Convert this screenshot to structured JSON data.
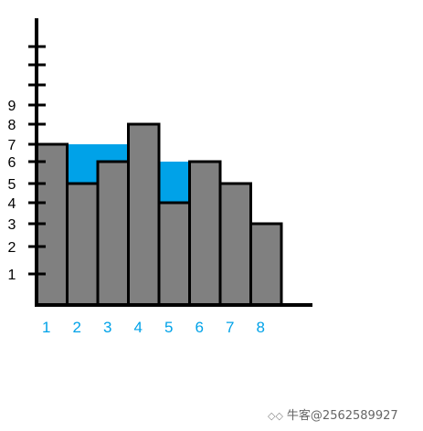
{
  "chart_data": {
    "type": "bar",
    "title": "",
    "xlabel": "",
    "ylabel": "",
    "categories": [
      "1",
      "2",
      "3",
      "4",
      "5",
      "6",
      "7",
      "8"
    ],
    "values": [
      7,
      5,
      6,
      8,
      4,
      6,
      5,
      3
    ],
    "water": [
      0,
      2,
      1,
      0,
      2,
      0,
      0,
      0
    ],
    "y_tick_labels": [
      "1",
      "2",
      "3",
      "4",
      "5",
      "6",
      "7",
      "8",
      "9"
    ],
    "grid": false,
    "legend": "none"
  },
  "colors": {
    "bar_fill": "#808080",
    "bar_stroke": "#000000",
    "water_fill": "#00a2e8",
    "axis": "#000000",
    "x_label": "#00a2e8",
    "y_label": "#000000"
  },
  "watermark": {
    "icon": "niuke-logo-icon",
    "text": "牛客@2562589927"
  }
}
